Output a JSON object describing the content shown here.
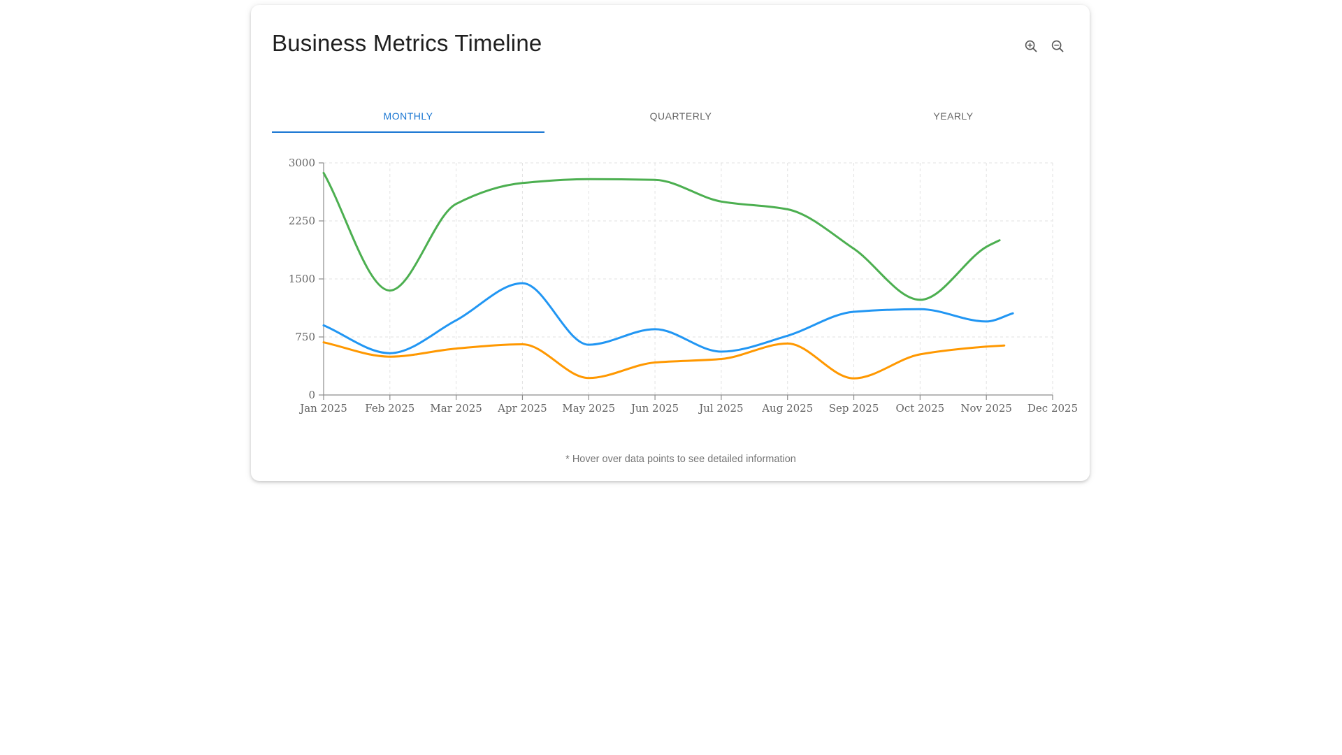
{
  "header": {
    "title": "Business Metrics Timeline"
  },
  "toolbar": {
    "buttons": [
      {
        "icon": "zoom-in-icon",
        "color": "#555555"
      },
      {
        "icon": "zoom-out-icon",
        "color": "#555555"
      }
    ]
  },
  "tabs": {
    "items": [
      {
        "label": "MONTHLY",
        "active": true
      },
      {
        "label": "QUARTERLY",
        "active": false
      },
      {
        "label": "YEARLY",
        "active": false
      }
    ],
    "active_color": "#1976d2",
    "inactive_color": "#666666"
  },
  "footnote": "* Hover over data points to see detailed information",
  "chart_data": {
    "type": "line",
    "title": "",
    "xlabel": "",
    "ylabel": "",
    "x_tick_labels": [
      "Jan 2025",
      "Feb 2025",
      "Mar 2025",
      "Apr 2025",
      "May 2025",
      "Jun 2025",
      "Jul 2025",
      "Aug 2025",
      "Sep 2025",
      "Oct 2025",
      "Nov 2025",
      "Dec 2025"
    ],
    "y_ticks": [
      0,
      750,
      1500,
      2250,
      3000
    ],
    "ylim": [
      0,
      3000
    ],
    "xlim_months": [
      0,
      11
    ],
    "grid": "dashed",
    "legend": "none",
    "curve": "monotone-x",
    "line_width": 3,
    "markers": false,
    "axis_color": "#8c8c8c",
    "grid_color": "#e2e2e2",
    "tick_label_color": "#636363",
    "series": [
      {
        "name": "green",
        "color": "#4caf50",
        "x_months": [
          0,
          1,
          2,
          3,
          4,
          5,
          6,
          7,
          8,
          9,
          10,
          10.2
        ],
        "values": [
          2870,
          1350,
          2470,
          2740,
          2790,
          2780,
          2500,
          2400,
          1890,
          1230,
          1915,
          2000
        ]
      },
      {
        "name": "blue",
        "color": "#2196f3",
        "x_months": [
          0,
          1,
          2,
          3,
          4,
          5,
          6,
          7,
          8,
          9,
          10,
          10.4
        ],
        "values": [
          900,
          540,
          965,
          1445,
          650,
          850,
          560,
          765,
          1075,
          1110,
          950,
          1055
        ]
      },
      {
        "name": "orange",
        "color": "#ff9800",
        "x_months": [
          0,
          1,
          2,
          3,
          4,
          5,
          6,
          7,
          8,
          9,
          10,
          10.27
        ],
        "values": [
          680,
          495,
          600,
          655,
          220,
          420,
          465,
          665,
          215,
          525,
          625,
          640
        ]
      }
    ]
  }
}
